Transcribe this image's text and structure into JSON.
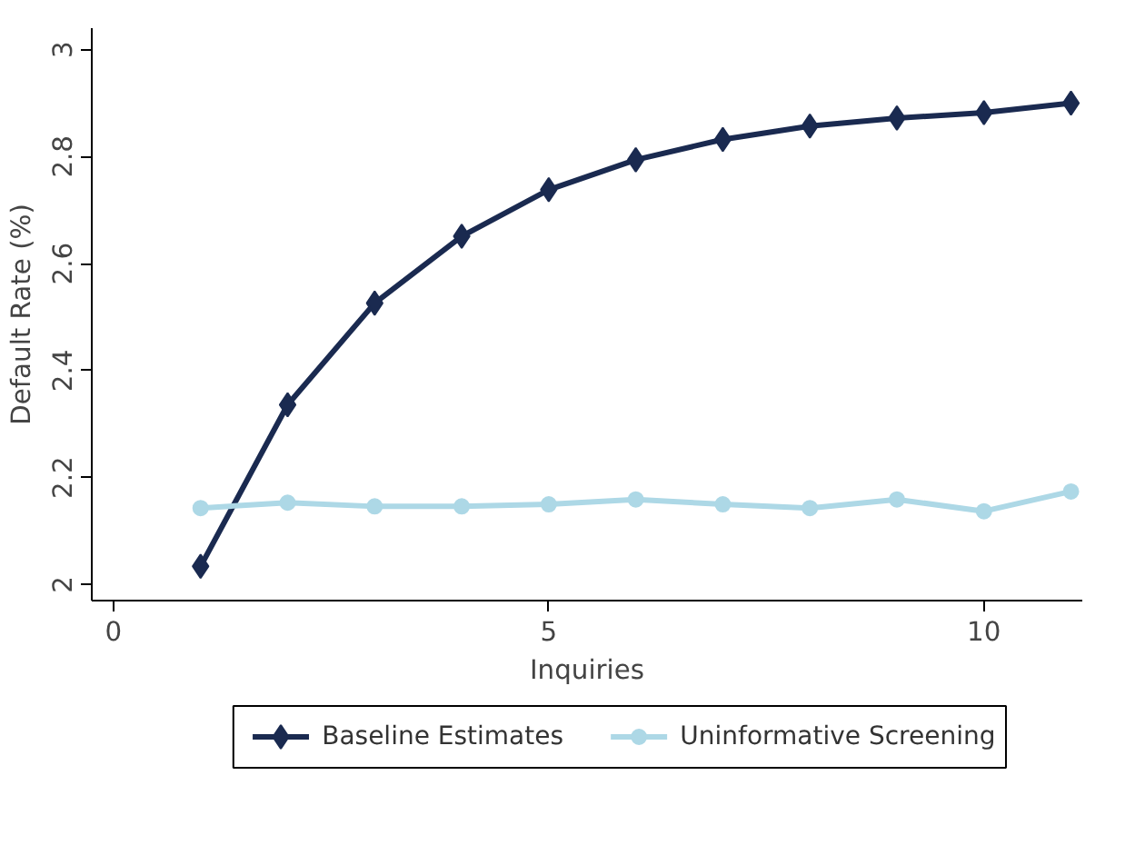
{
  "chart_data": {
    "type": "line",
    "xlabel": "Inquiries",
    "ylabel": "Default Rate (%)",
    "x": [
      1,
      2,
      3,
      4,
      5,
      6,
      7,
      8,
      9,
      10,
      11
    ],
    "series": [
      {
        "name": "Baseline Estimates",
        "color": "#1a2a50",
        "marker": "diamond",
        "values": [
          2.034,
          2.336,
          2.526,
          2.651,
          2.738,
          2.794,
          2.832,
          2.857,
          2.872,
          2.882,
          2.9
        ]
      },
      {
        "name": "Uninformative Screening",
        "color": "#add8e6",
        "marker": "circle",
        "values": [
          2.143,
          2.153,
          2.146,
          2.146,
          2.15,
          2.159,
          2.15,
          2.143,
          2.159,
          2.137,
          2.174
        ]
      }
    ],
    "xlim": [
      -0.25,
      11.13
    ],
    "ylim": [
      1.97,
      3.04
    ],
    "xticks": [
      0,
      5,
      10
    ],
    "yticks": [
      2,
      2.2,
      2.4,
      2.6,
      2.8,
      3
    ],
    "grid": false,
    "legend": "bottom",
    "line_style": "solid"
  }
}
